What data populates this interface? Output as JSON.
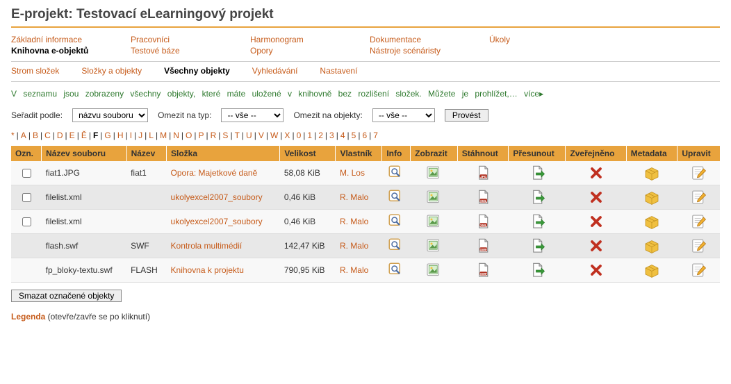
{
  "page_title": "E-projekt: Testovací eLearningový projekt",
  "nav": {
    "cols": [
      [
        "Základní informace",
        "Knihovna e-objektů"
      ],
      [
        "Pracovníci",
        "Testové báze"
      ],
      [
        "Harmonogram",
        "Opory"
      ],
      [
        "Dokumentace",
        "Nástroje scénáristy"
      ],
      [
        "Úkoly"
      ]
    ],
    "bold": "Knihovna e-objektů"
  },
  "subnav": {
    "items": [
      "Strom složek",
      "Složky a objekty",
      "Všechny objekty",
      "Vyhledávání",
      "Nastavení"
    ],
    "active": "Všechny objekty"
  },
  "info_text": "V seznamu jsou zobrazeny všechny objekty, které máte uložené v knihovně bez rozlišení složek. Můžete je prohlížet,… ",
  "info_more": "více",
  "controls": {
    "sort_label": "Seřadit podle:",
    "sort_value": "názvu souboru",
    "type_label": "Omezit na typ:",
    "type_value": "-- vše --",
    "obj_label": "Omezit na objekty:",
    "obj_value": "-- vše --",
    "submit": "Provést"
  },
  "alpha": {
    "items": [
      "*",
      "A",
      "B",
      "C",
      "D",
      "E",
      "Ě",
      "F",
      "G",
      "H",
      "I",
      "J",
      "L",
      "M",
      "N",
      "O",
      "P",
      "R",
      "S",
      "T",
      "U",
      "V",
      "W",
      "X",
      "0",
      "1",
      "2",
      "3",
      "4",
      "5",
      "6",
      "7"
    ],
    "active": "F"
  },
  "table": {
    "headers": [
      "Ozn.",
      "Název souboru",
      "Název",
      "Složka",
      "Velikost",
      "Vlastník",
      "Info",
      "Zobrazit",
      "Stáhnout",
      "Přesunout",
      "Zveřejněno",
      "Metadata",
      "Upravit"
    ],
    "rows": [
      {
        "checkbox": true,
        "file": "fiat1.JPG",
        "name": "fiat1",
        "folder": "Opora: Majetkové daně",
        "size": "58,08 KiB",
        "owner": "M. Los",
        "dl": "JPG",
        "shade": "light"
      },
      {
        "checkbox": true,
        "file": "filelist.xml",
        "name": "",
        "folder": "ukolyexcel2007_soubory",
        "size": "0,46 KiB",
        "owner": "R. Malo",
        "dl": "XML",
        "shade": "dark"
      },
      {
        "checkbox": true,
        "file": "filelist.xml",
        "name": "",
        "folder": "ukolyexcel2007_soubory",
        "size": "0,46 KiB",
        "owner": "R. Malo",
        "dl": "XML",
        "shade": "light"
      },
      {
        "checkbox": false,
        "file": "flash.swf",
        "name": "SWF",
        "folder": "Kontrola multimédií",
        "size": "142,47 KiB",
        "owner": "R. Malo",
        "dl": "SWF",
        "shade": "dark"
      },
      {
        "checkbox": false,
        "file": "fp_bloky-textu.swf",
        "name": "FLASH",
        "folder": "Knihovna k projektu",
        "size": "790,95 KiB",
        "owner": "R. Malo",
        "dl": "SWF",
        "shade": "light"
      }
    ]
  },
  "delete_button": "Smazat označené objekty",
  "legend_label": "Legenda",
  "legend_rest": " (otevře/zavře se po kliknutí)",
  "colors": {
    "accent": "#e8a33d",
    "link": "#c65b1a",
    "info": "#2f7a2f"
  }
}
